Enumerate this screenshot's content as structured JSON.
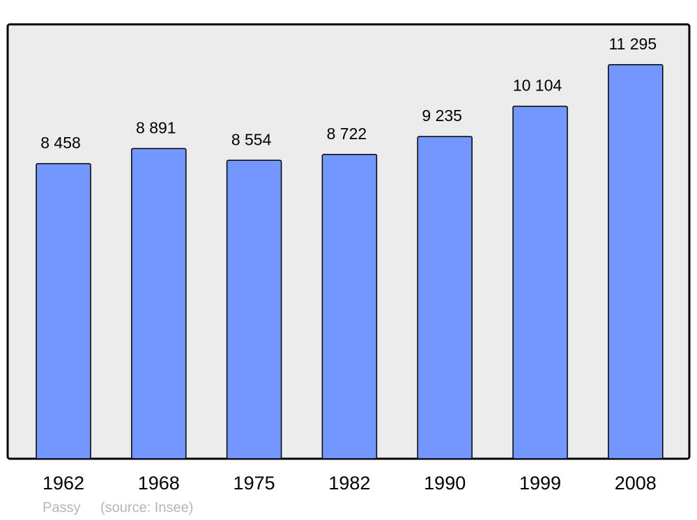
{
  "chart_data": {
    "type": "bar",
    "categories": [
      "1962",
      "1968",
      "1975",
      "1982",
      "1990",
      "1999",
      "2008"
    ],
    "values": [
      8458,
      8891,
      8554,
      8722,
      9235,
      10104,
      11295
    ],
    "value_labels": [
      "8 458",
      "8 891",
      "8 554",
      "8 722",
      "9 235",
      "10 104",
      "11 295"
    ],
    "color": "#7396ff",
    "ylim": [
      0,
      12450
    ],
    "caption": "Passy",
    "source": "(source: Insee)"
  }
}
